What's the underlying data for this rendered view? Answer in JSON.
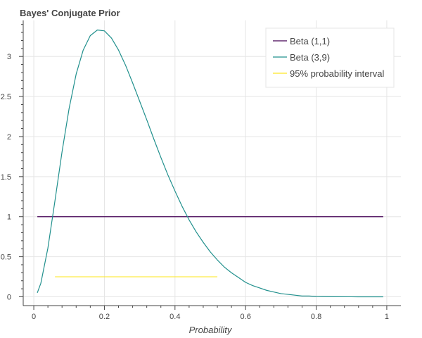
{
  "chart_data": {
    "type": "line",
    "title": "Bayes' Conjugate Prior",
    "xlabel": "Probability",
    "ylabel": "",
    "xlim": [
      -0.03,
      1.04
    ],
    "ylim": [
      -0.11,
      3.45
    ],
    "xticks": [
      0,
      0.2,
      0.4,
      0.6,
      0.8,
      1
    ],
    "xtick_labels": [
      "0",
      "0.2",
      "0.4",
      "0.6",
      "0.8",
      "1"
    ],
    "yticks": [
      0,
      0.5,
      1,
      1.5,
      2,
      2.5,
      3
    ],
    "ytick_labels": [
      "0",
      "0.5",
      "1",
      "1.5",
      "2",
      "2.5",
      "3"
    ],
    "grid": true,
    "legend_position": "top-right",
    "series": [
      {
        "name": "Beta (1,1)",
        "color": "#440154",
        "x": [
          0.01,
          0.99
        ],
        "y": [
          1,
          1
        ]
      },
      {
        "name": "Beta (3,9)",
        "color": "#21908d",
        "x": [
          0.01,
          0.02,
          0.04,
          0.06,
          0.08,
          0.1,
          0.12,
          0.14,
          0.16,
          0.18,
          0.2,
          0.22,
          0.24,
          0.26,
          0.28,
          0.3,
          0.32,
          0.34,
          0.36,
          0.38,
          0.4,
          0.42,
          0.44,
          0.46,
          0.48,
          0.5,
          0.52,
          0.54,
          0.56,
          0.58,
          0.6,
          0.62,
          0.64,
          0.66,
          0.68,
          0.7,
          0.72,
          0.74,
          0.76,
          0.78,
          0.8,
          0.85,
          0.9,
          0.95,
          0.99
        ],
        "y": [
          0.05,
          0.17,
          0.61,
          1.2,
          1.81,
          2.35,
          2.78,
          3.08,
          3.26,
          3.33,
          3.32,
          3.23,
          3.08,
          2.89,
          2.67,
          2.44,
          2.21,
          1.97,
          1.74,
          1.52,
          1.32,
          1.13,
          0.96,
          0.81,
          0.68,
          0.56,
          0.46,
          0.37,
          0.3,
          0.24,
          0.18,
          0.14,
          0.11,
          0.08,
          0.06,
          0.04,
          0.03,
          0.02,
          0.01,
          0.01,
          0.004,
          0.001,
          0.0002,
          0.0,
          0.0
        ]
      },
      {
        "name": "95% probability interval",
        "color": "#fde725",
        "x": [
          0.06,
          0.52
        ],
        "y": [
          0.25,
          0.25
        ]
      }
    ]
  }
}
